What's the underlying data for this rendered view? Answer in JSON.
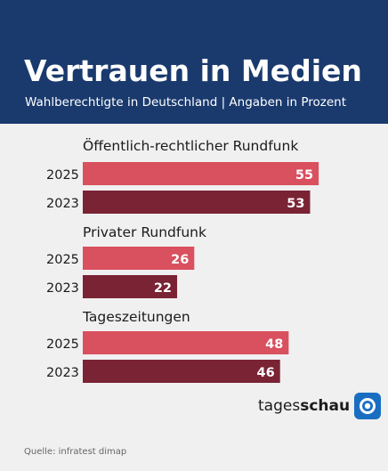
{
  "header": {
    "title": "Vertrauen in Medien",
    "subtitle": "Wahlberechtigte in Deutschland | Angaben in Prozent"
  },
  "chart_data": {
    "type": "bar",
    "orientation": "horizontal",
    "title": "Vertrauen in Medien",
    "subtitle": "Wahlberechtigte in Deutschland | Angaben in Prozent",
    "unit": "%",
    "groups": [
      {
        "name": "Öffentlich-rechtlicher Rundfunk",
        "values": [
          {
            "year": "2025",
            "value": 55
          },
          {
            "year": "2023",
            "value": 53
          }
        ]
      },
      {
        "name": "Privater Rundfunk",
        "values": [
          {
            "year": "2025",
            "value": 26
          },
          {
            "year": "2023",
            "value": 22
          }
        ]
      },
      {
        "name": "Tageszeitungen",
        "values": [
          {
            "year": "2025",
            "value": 48
          },
          {
            "year": "2023",
            "value": 46
          }
        ]
      }
    ],
    "colors": {
      "2025": "#d9505f",
      "2023": "#7a2335"
    },
    "data_labels": true,
    "grid": false
  },
  "logo": {
    "bold": "schau",
    "prefix": "tages"
  },
  "footer": {
    "source": "Quelle: infratest dimap"
  }
}
